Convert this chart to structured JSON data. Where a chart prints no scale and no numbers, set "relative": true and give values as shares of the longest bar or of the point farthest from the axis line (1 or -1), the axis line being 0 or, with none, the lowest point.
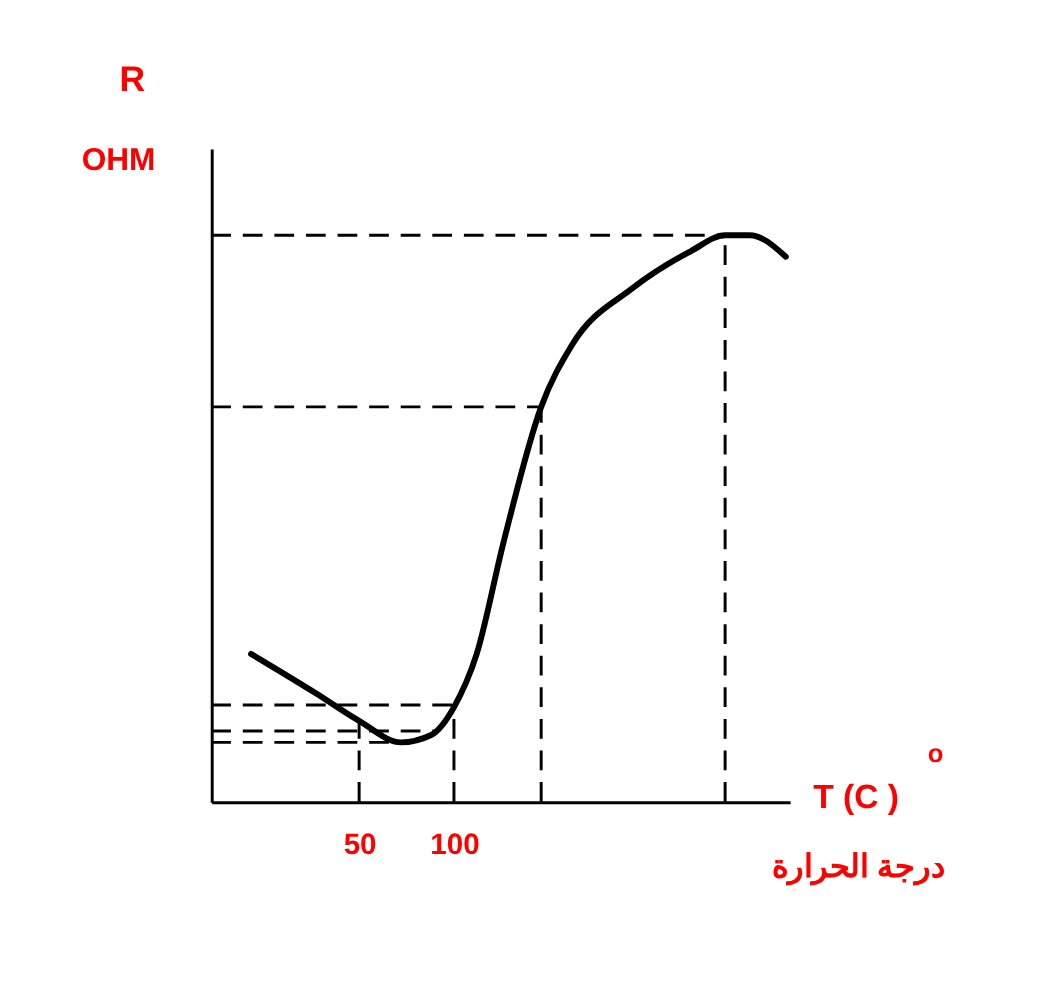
{
  "chart_data": {
    "type": "line",
    "relative": true,
    "xlabel": "T (C )$^{o}$",
    "ylabel": "R\nOHM",
    "annotations": [
      "درجة الحرارة"
    ],
    "x": [
      -7,
      27,
      50,
      72,
      88,
      100,
      112,
      126,
      146,
      162,
      194,
      225,
      243,
      256,
      275
    ],
    "series": [
      {
        "color": "#000000",
        "values": [
          0.261,
          0.192,
          0.143,
          0.105,
          0.118,
          0.167,
          0.261,
          0.456,
          0.697,
          0.805,
          0.906,
          0.972,
          1,
          1,
          0.962
        ]
      }
    ],
    "xlim": [
      -28,
      277
    ],
    "xticks": [
      50,
      100
    ],
    "tick_labels": "x",
    "grid": false,
    "marker": "none",
    "line_style": "solid",
    "ref_lines": [
      {
        "axis": "x",
        "value": 50,
        "line_style": "dashed"
      },
      {
        "axis": "x",
        "value": 100,
        "line_style": "dashed"
      },
      {
        "axis": "x",
        "value": 146,
        "line_style": "dashed"
      },
      {
        "axis": "x",
        "value": 243,
        "line_style": "dashed"
      },
      {
        "axis": "y",
        "value": 0.171,
        "line_style": "dashed"
      },
      {
        "axis": "y",
        "value": 0.125,
        "line_style": "dashed"
      },
      {
        "axis": "y",
        "value": 0.105,
        "line_style": "dashed"
      },
      {
        "axis": "y",
        "value": 0.697,
        "line_style": "dashed"
      },
      {
        "axis": "y",
        "value": 1,
        "line_style": "dashed"
      }
    ]
  }
}
